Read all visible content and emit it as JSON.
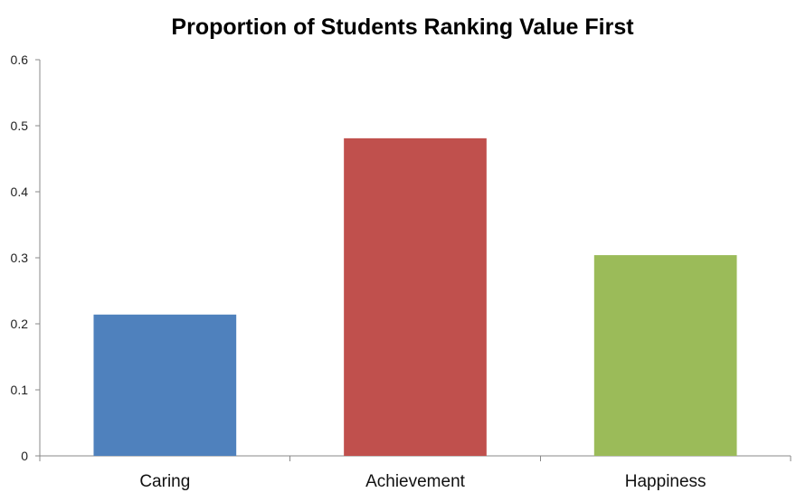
{
  "chart_data": {
    "type": "bar",
    "title": "Proportion of Students Ranking Value First",
    "xlabel": "",
    "ylabel": "",
    "categories": [
      "Caring",
      "Achievement",
      "Happiness"
    ],
    "values": [
      0.214,
      0.481,
      0.304
    ],
    "colors": [
      "#4f81bd",
      "#c0504d",
      "#9bbb59"
    ],
    "ylim": [
      0,
      0.6
    ],
    "yticks": [
      "0",
      "0.1",
      "0.2",
      "0.3",
      "0.4",
      "0.5",
      "0.6"
    ],
    "grid": false,
    "legend": "none"
  }
}
